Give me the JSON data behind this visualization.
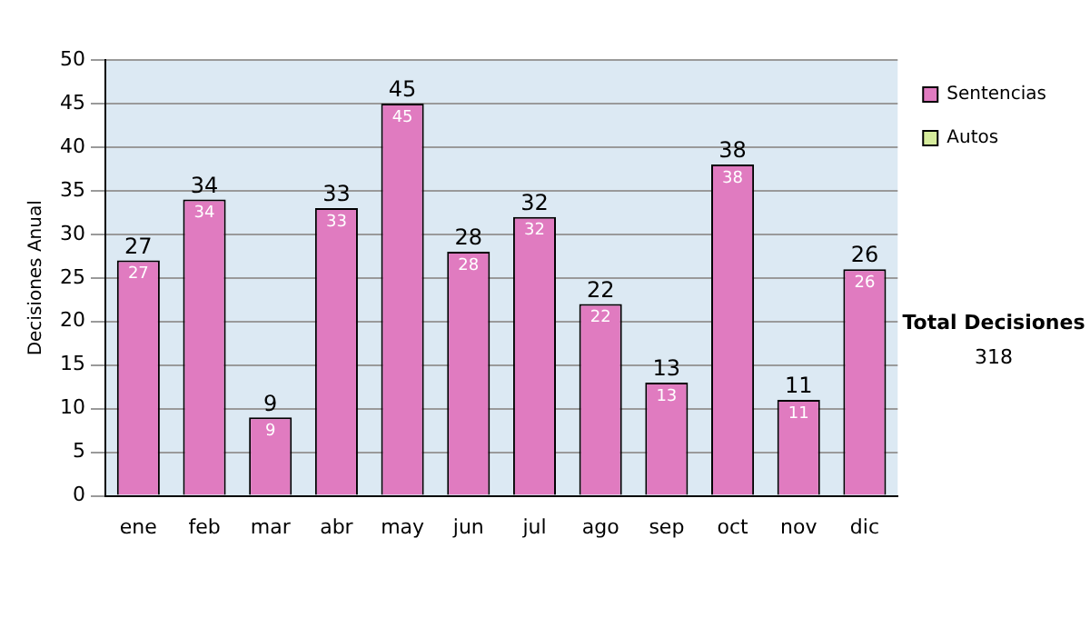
{
  "chart_data": {
    "type": "bar",
    "ylabel": "Decisiones Anual",
    "categories": [
      "ene",
      "feb",
      "mar",
      "abr",
      "may",
      "jun",
      "jul",
      "ago",
      "sep",
      "oct",
      "nov",
      "dic"
    ],
    "series": [
      {
        "name": "Sentencias",
        "color": "#e07bc0",
        "values": [
          27,
          34,
          9,
          33,
          45,
          28,
          32,
          22,
          13,
          38,
          11,
          26
        ],
        "value_labels": [
          "27",
          "34",
          "9",
          "33",
          "45",
          "28",
          "32",
          "22",
          "13",
          "38",
          "11",
          "26"
        ]
      },
      {
        "name": "Autos",
        "color": "#d6ec9c",
        "values": [
          0,
          0,
          0,
          0,
          0,
          0,
          0,
          0,
          0,
          0,
          0,
          0
        ]
      }
    ],
    "stacked": true,
    "totals": [
      "27",
      "34",
      "9",
      "33",
      "45",
      "28",
      "32",
      "22",
      "13",
      "38",
      "11",
      "26"
    ],
    "ylim": [
      0,
      50
    ],
    "yticks": [
      0,
      5,
      10,
      15,
      20,
      25,
      30,
      35,
      40,
      45,
      50
    ],
    "grid": "y",
    "legend": "right",
    "annotations": [
      "Total Decisiones",
      "318"
    ]
  }
}
